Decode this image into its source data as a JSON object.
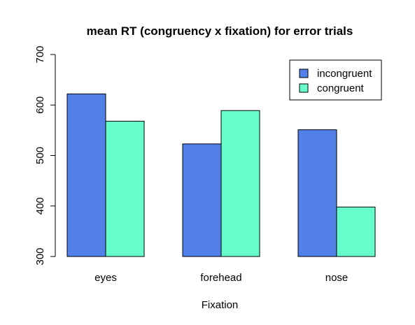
{
  "chart_data": {
    "type": "bar",
    "title": "mean RT (congruency x fixation) for error trials",
    "xlabel": "Fixation",
    "ylabel": "",
    "categories": [
      "eyes",
      "forehead",
      "nose"
    ],
    "series": [
      {
        "name": "incongruent",
        "color": "#527fe8",
        "values": [
          622,
          523,
          551
        ]
      },
      {
        "name": "congruent",
        "color": "#66ffcc",
        "values": [
          568,
          589,
          398
        ]
      }
    ],
    "ylim": [
      300,
      700
    ],
    "yticks": [
      "300",
      "400",
      "500",
      "600",
      "700"
    ],
    "grid": false,
    "legend_position": "top-right"
  }
}
